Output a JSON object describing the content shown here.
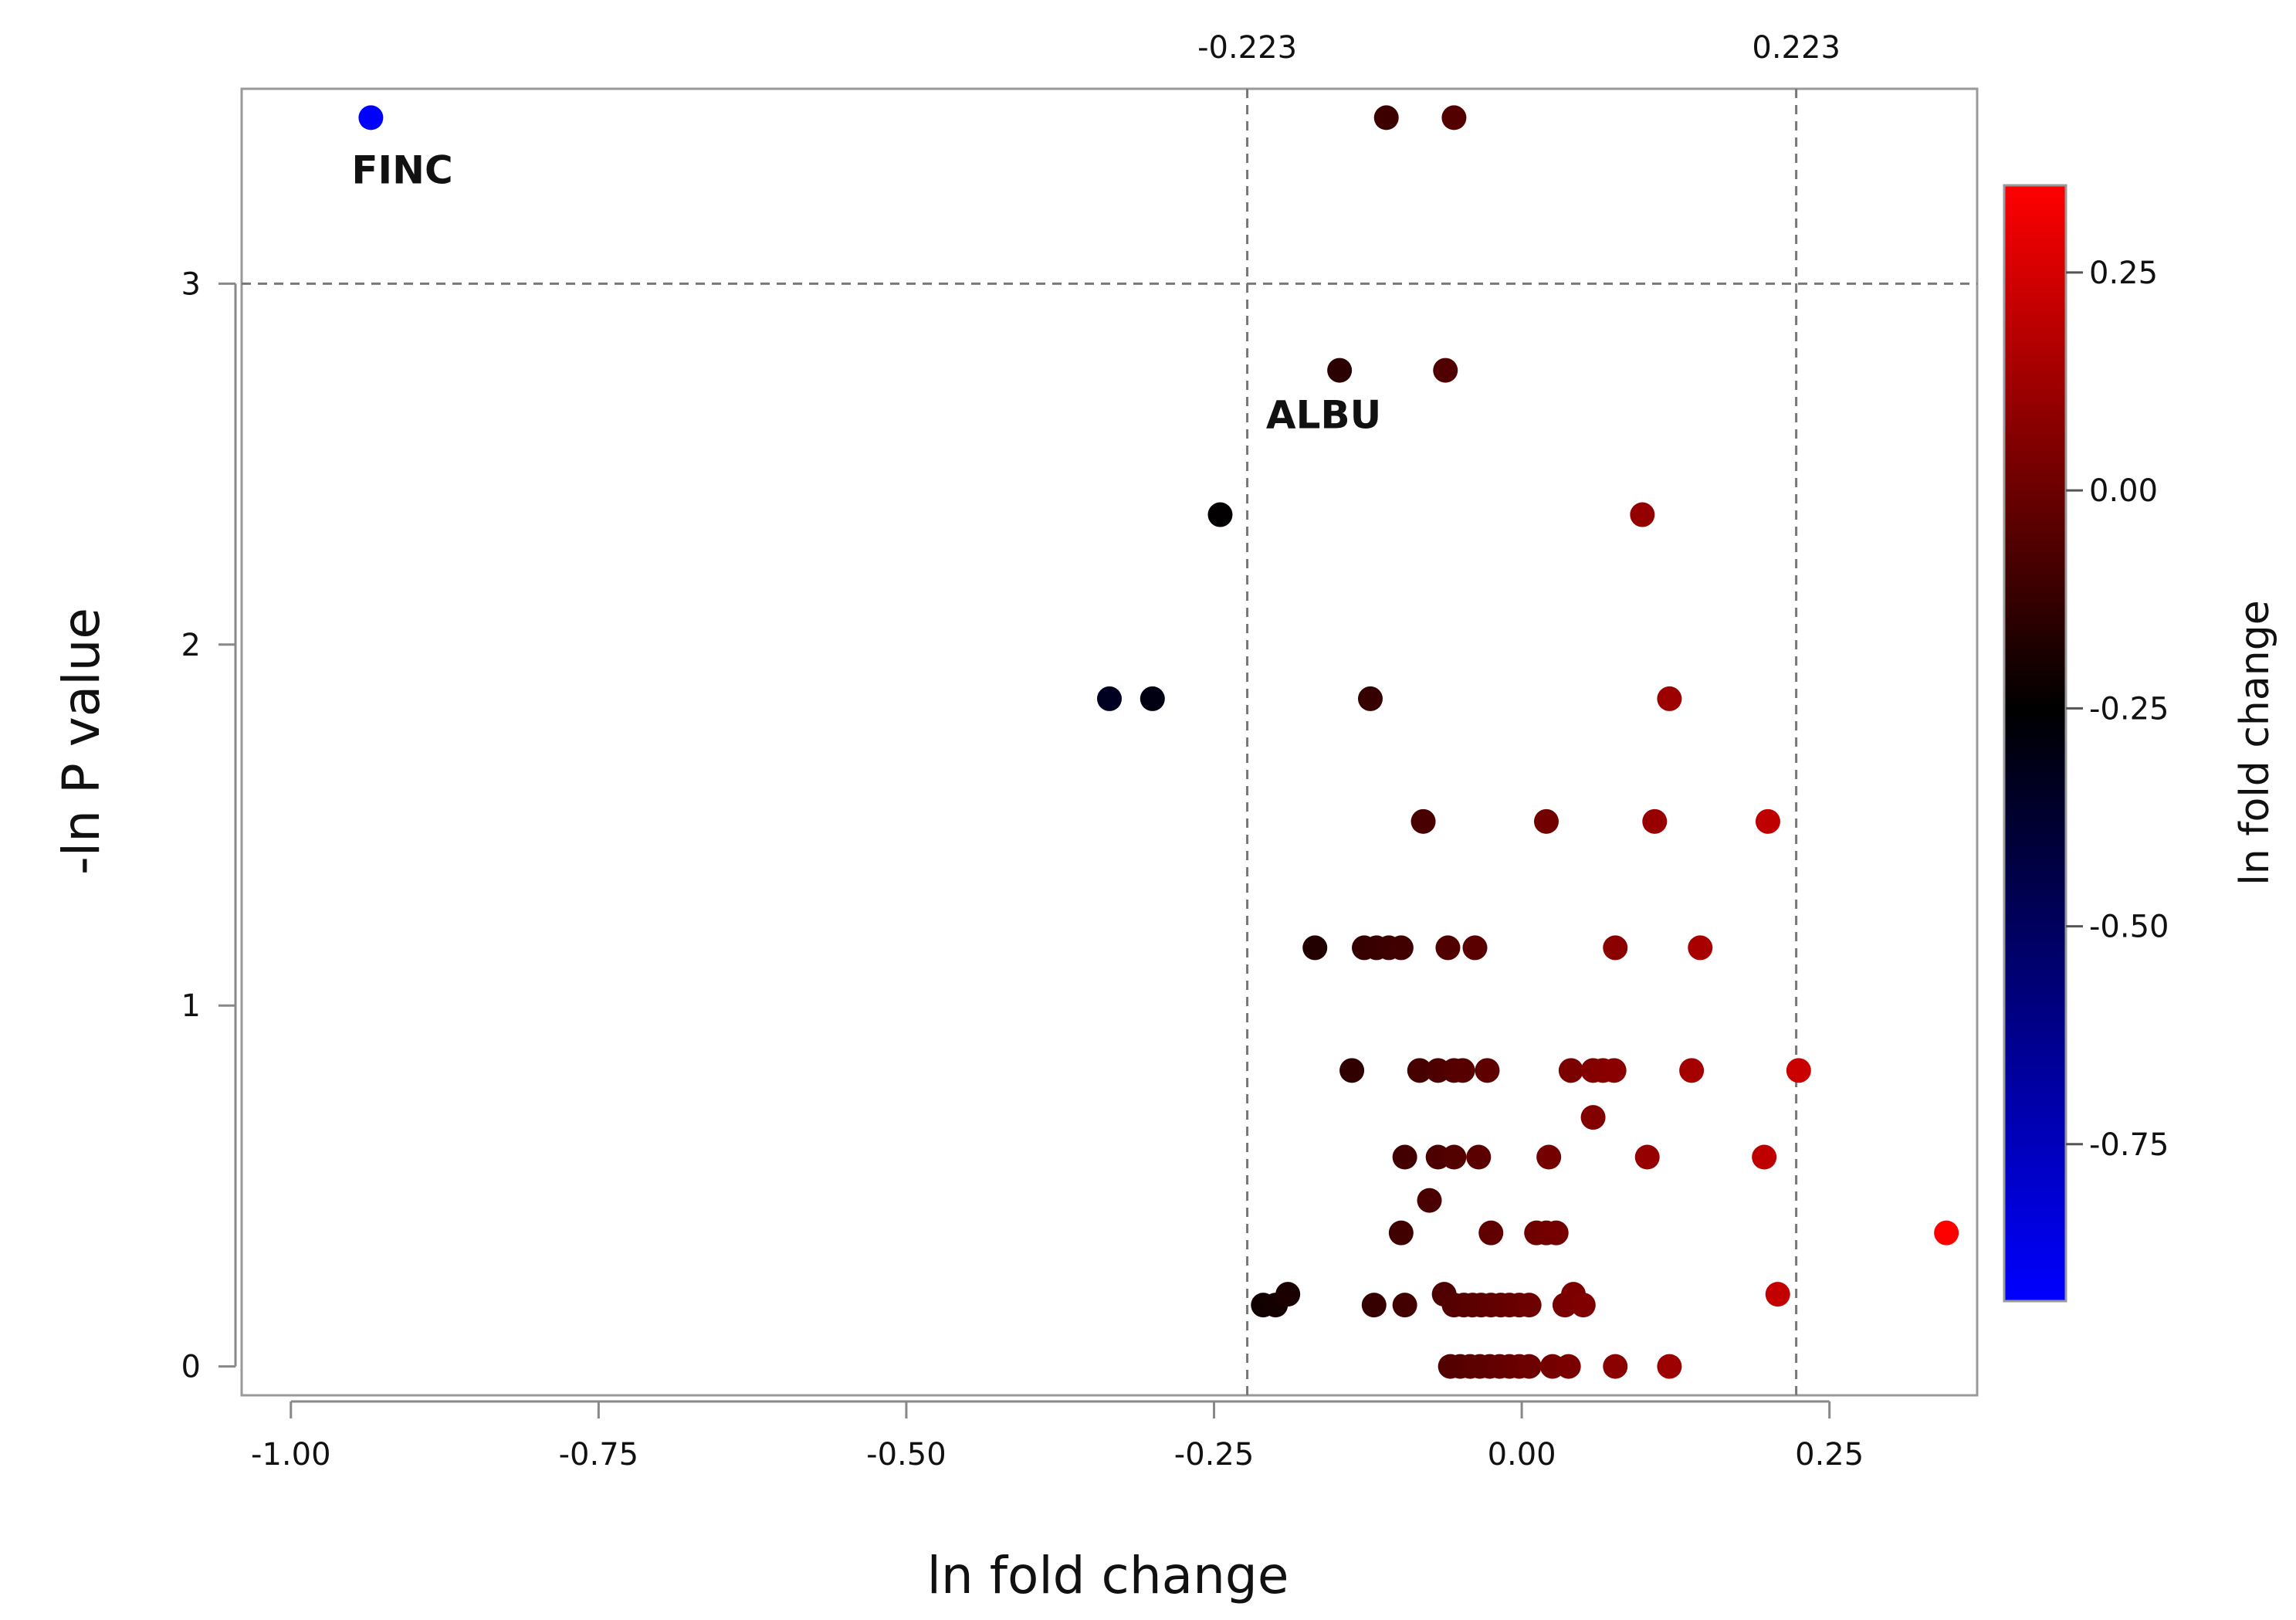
{
  "chart_data": {
    "type": "scatter",
    "xlabel": "ln fold change",
    "ylabel": "-ln P value",
    "xlim": [
      -1.04,
      0.37
    ],
    "ylim": [
      -0.08,
      3.54
    ],
    "x_ticks": [
      -1.0,
      -0.75,
      -0.5,
      -0.25,
      0.0,
      0.25
    ],
    "x_tick_labels": [
      "-1.00",
      "-0.75",
      "-0.50",
      "-0.25",
      "0.00",
      "0.25"
    ],
    "y_ticks": [
      0,
      1,
      2,
      3
    ],
    "y_tick_labels": [
      "0",
      "1",
      "2",
      "3"
    ],
    "reference_lines": {
      "vertical": [
        {
          "x": -0.223,
          "label": "-0.223"
        },
        {
          "x": 0.223,
          "label": "0.223"
        }
      ],
      "horizontal": [
        {
          "y": 3
        }
      ]
    },
    "grid": false,
    "annotations": [
      {
        "text": "FINC",
        "x": -0.935,
        "y": 3.46
      },
      {
        "text": "ALBU",
        "x": -0.145,
        "y": 2.76
      }
    ],
    "colorbar": {
      "title": "ln fold change",
      "min": -0.93,
      "max": 0.35,
      "ticks": [
        0.25,
        0.0,
        -0.25,
        -0.5,
        -0.75
      ],
      "tick_labels": [
        "0.25",
        "0.00",
        "-0.25",
        "-0.50",
        "-0.75"
      ],
      "colors": {
        "low": "#0000ff",
        "mid": "#000000",
        "high": "#ff0000"
      },
      "mid_value": -0.25,
      "placement": "right"
    },
    "points": [
      {
        "x": -0.935,
        "y": 3.46
      },
      {
        "x": -0.11,
        "y": 3.46
      },
      {
        "x": -0.055,
        "y": 3.46
      },
      {
        "x": -0.148,
        "y": 2.76
      },
      {
        "x": -0.062,
        "y": 2.76
      },
      {
        "x": -0.245,
        "y": 2.36
      },
      {
        "x": 0.098,
        "y": 2.36
      },
      {
        "x": -0.335,
        "y": 1.85
      },
      {
        "x": -0.3,
        "y": 1.85
      },
      {
        "x": -0.123,
        "y": 1.85
      },
      {
        "x": 0.12,
        "y": 1.85
      },
      {
        "x": -0.08,
        "y": 1.51
      },
      {
        "x": 0.02,
        "y": 1.51
      },
      {
        "x": 0.108,
        "y": 1.51
      },
      {
        "x": 0.2,
        "y": 1.51
      },
      {
        "x": -0.168,
        "y": 1.16
      },
      {
        "x": -0.128,
        "y": 1.16
      },
      {
        "x": -0.118,
        "y": 1.16
      },
      {
        "x": -0.108,
        "y": 1.16
      },
      {
        "x": -0.098,
        "y": 1.16
      },
      {
        "x": -0.06,
        "y": 1.16
      },
      {
        "x": -0.038,
        "y": 1.16
      },
      {
        "x": 0.076,
        "y": 1.16
      },
      {
        "x": 0.145,
        "y": 1.16
      },
      {
        "x": -0.138,
        "y": 0.82
      },
      {
        "x": -0.083,
        "y": 0.82
      },
      {
        "x": -0.068,
        "y": 0.82
      },
      {
        "x": -0.055,
        "y": 0.82
      },
      {
        "x": -0.048,
        "y": 0.82
      },
      {
        "x": -0.028,
        "y": 0.82
      },
      {
        "x": 0.04,
        "y": 0.82
      },
      {
        "x": 0.058,
        "y": 0.82
      },
      {
        "x": 0.066,
        "y": 0.82
      },
      {
        "x": 0.075,
        "y": 0.82
      },
      {
        "x": 0.138,
        "y": 0.82
      },
      {
        "x": 0.225,
        "y": 0.82
      },
      {
        "x": 0.058,
        "y": 0.69
      },
      {
        "x": -0.095,
        "y": 0.58
      },
      {
        "x": -0.068,
        "y": 0.58
      },
      {
        "x": -0.055,
        "y": 0.58
      },
      {
        "x": -0.035,
        "y": 0.58
      },
      {
        "x": 0.022,
        "y": 0.58
      },
      {
        "x": 0.102,
        "y": 0.58
      },
      {
        "x": 0.197,
        "y": 0.58
      },
      {
        "x": -0.075,
        "y": 0.46
      },
      {
        "x": -0.098,
        "y": 0.37
      },
      {
        "x": -0.025,
        "y": 0.37
      },
      {
        "x": 0.012,
        "y": 0.37
      },
      {
        "x": 0.02,
        "y": 0.37
      },
      {
        "x": 0.028,
        "y": 0.37
      },
      {
        "x": 0.345,
        "y": 0.37
      },
      {
        "x": -0.21,
        "y": 0.17
      },
      {
        "x": -0.2,
        "y": 0.17
      },
      {
        "x": -0.19,
        "y": 0.2
      },
      {
        "x": -0.12,
        "y": 0.17
      },
      {
        "x": -0.095,
        "y": 0.17
      },
      {
        "x": -0.063,
        "y": 0.2
      },
      {
        "x": -0.055,
        "y": 0.17
      },
      {
        "x": -0.047,
        "y": 0.17
      },
      {
        "x": -0.04,
        "y": 0.17
      },
      {
        "x": -0.033,
        "y": 0.17
      },
      {
        "x": -0.025,
        "y": 0.17
      },
      {
        "x": -0.017,
        "y": 0.17
      },
      {
        "x": -0.01,
        "y": 0.17
      },
      {
        "x": -0.002,
        "y": 0.17
      },
      {
        "x": 0.006,
        "y": 0.17
      },
      {
        "x": 0.035,
        "y": 0.17
      },
      {
        "x": 0.042,
        "y": 0.2
      },
      {
        "x": 0.05,
        "y": 0.17
      },
      {
        "x": 0.208,
        "y": 0.2
      },
      {
        "x": -0.058,
        "y": 0.0
      },
      {
        "x": -0.05,
        "y": 0.0
      },
      {
        "x": -0.042,
        "y": 0.0
      },
      {
        "x": -0.034,
        "y": 0.0
      },
      {
        "x": -0.026,
        "y": 0.0
      },
      {
        "x": -0.018,
        "y": 0.0
      },
      {
        "x": -0.01,
        "y": 0.0
      },
      {
        "x": -0.002,
        "y": 0.0
      },
      {
        "x": 0.006,
        "y": 0.0
      },
      {
        "x": 0.025,
        "y": 0.0
      },
      {
        "x": 0.038,
        "y": 0.0
      },
      {
        "x": 0.076,
        "y": 0.0
      },
      {
        "x": 0.12,
        "y": 0.0
      }
    ]
  }
}
